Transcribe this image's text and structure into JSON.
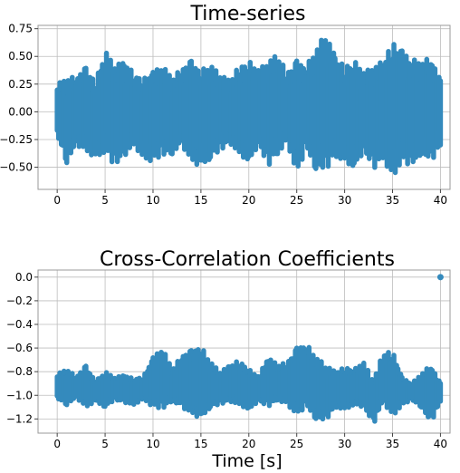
{
  "colors": {
    "series": "#348abd",
    "grid": "#bdbdbd",
    "frame": "#9a9a9a"
  },
  "chart_data": [
    {
      "type": "scatter",
      "title": "Time-series",
      "xlabel": "",
      "ylabel": "",
      "xlim": [
        -2,
        41
      ],
      "ylim": [
        -0.7,
        0.78
      ],
      "xticks": [
        0,
        5,
        10,
        15,
        20,
        25,
        30,
        35,
        40
      ],
      "xtick_labels": [
        "0",
        "5",
        "10",
        "15",
        "20",
        "25",
        "30",
        "35",
        "40"
      ],
      "yticks": [
        -0.5,
        -0.25,
        0.0,
        0.25,
        0.5,
        0.75
      ],
      "ytick_labels": [
        "−0.50",
        "−0.25",
        "0.00",
        "0.25",
        "0.50",
        "0.75"
      ],
      "grid": true,
      "series": [
        {
          "x": [
            0,
            1,
            2,
            3,
            4,
            5,
            6,
            7,
            8,
            9,
            10,
            11,
            12,
            13,
            14,
            15,
            16,
            17,
            18,
            19,
            20,
            21,
            22,
            23,
            24,
            25,
            26,
            27,
            28,
            29,
            30,
            31,
            32,
            33,
            34,
            35,
            36,
            37,
            38,
            39,
            40
          ],
          "values_min": [
            -0.22,
            -0.46,
            -0.3,
            -0.35,
            -0.42,
            -0.36,
            -0.5,
            -0.4,
            -0.3,
            -0.42,
            -0.45,
            -0.4,
            -0.38,
            -0.3,
            -0.44,
            -0.5,
            -0.42,
            -0.36,
            -0.28,
            -0.38,
            -0.45,
            -0.3,
            -0.5,
            -0.38,
            -0.28,
            -0.55,
            -0.34,
            -0.52,
            -0.54,
            -0.4,
            -0.45,
            -0.5,
            -0.36,
            -0.52,
            -0.42,
            -0.6,
            -0.44,
            -0.5,
            -0.38,
            -0.46,
            -0.3
          ],
          "values_max": [
            0.25,
            0.3,
            0.32,
            0.4,
            0.28,
            0.55,
            0.42,
            0.45,
            0.35,
            0.3,
            0.36,
            0.42,
            0.3,
            0.4,
            0.46,
            0.38,
            0.42,
            0.34,
            0.28,
            0.42,
            0.46,
            0.38,
            0.45,
            0.52,
            0.36,
            0.46,
            0.42,
            0.55,
            0.72,
            0.5,
            0.42,
            0.46,
            0.36,
            0.4,
            0.46,
            0.64,
            0.55,
            0.48,
            0.44,
            0.5,
            0.28
          ]
        }
      ]
    },
    {
      "type": "scatter",
      "title": "Cross-Correlation Coefficients",
      "xlabel": "Time [s]",
      "ylabel": "",
      "xlim": [
        -2,
        41
      ],
      "ylim": [
        -1.32,
        0.06
      ],
      "xticks": [
        0,
        5,
        10,
        15,
        20,
        25,
        30,
        35,
        40
      ],
      "xtick_labels": [
        "0",
        "5",
        "10",
        "15",
        "20",
        "25",
        "30",
        "35",
        "40"
      ],
      "yticks": [
        -1.2,
        -1.0,
        -0.8,
        -0.6,
        -0.4,
        -0.2,
        0.0
      ],
      "ytick_labels": [
        "−1.2",
        "−1.0",
        "−0.8",
        "−0.6",
        "−0.4",
        "−0.2",
        "0.0"
      ],
      "grid": true,
      "series": [
        {
          "x": [
            0,
            1,
            2,
            3,
            4,
            5,
            6,
            7,
            8,
            9,
            10,
            11,
            12,
            13,
            14,
            15,
            16,
            17,
            18,
            19,
            20,
            21,
            22,
            23,
            24,
            25,
            26,
            27,
            28,
            29,
            30,
            31,
            32,
            33,
            34,
            35,
            36,
            37,
            38,
            39,
            40
          ],
          "values_min": [
            -1.03,
            -1.08,
            -1.02,
            -1.1,
            -1.05,
            -1.1,
            -1.04,
            -1.06,
            -1.08,
            -1.03,
            -1.1,
            -1.12,
            -1.05,
            -1.1,
            -1.15,
            -1.2,
            -1.1,
            -1.08,
            -1.05,
            -1.08,
            -1.12,
            -1.05,
            -1.1,
            -1.04,
            -1.08,
            -1.16,
            -1.1,
            -1.2,
            -1.22,
            -1.1,
            -1.12,
            -1.08,
            -1.1,
            -1.25,
            -1.05,
            -1.18,
            -1.08,
            -1.04,
            -1.1,
            -1.24,
            -1.05
          ],
          "values_max": [
            -0.82,
            -0.78,
            -0.84,
            -0.75,
            -0.88,
            -0.8,
            -0.85,
            -0.83,
            -0.86,
            -0.84,
            -0.68,
            -0.6,
            -0.78,
            -0.66,
            -0.62,
            -0.58,
            -0.72,
            -0.8,
            -0.75,
            -0.7,
            -0.78,
            -0.84,
            -0.68,
            -0.74,
            -0.72,
            -0.6,
            -0.56,
            -0.68,
            -0.74,
            -0.8,
            -0.76,
            -0.78,
            -0.72,
            -0.88,
            -0.64,
            -0.62,
            -0.85,
            -0.9,
            -0.82,
            -0.74,
            -0.9
          ]
        },
        {
          "x": [
            40
          ],
          "values": [
            0.0
          ]
        }
      ]
    }
  ]
}
